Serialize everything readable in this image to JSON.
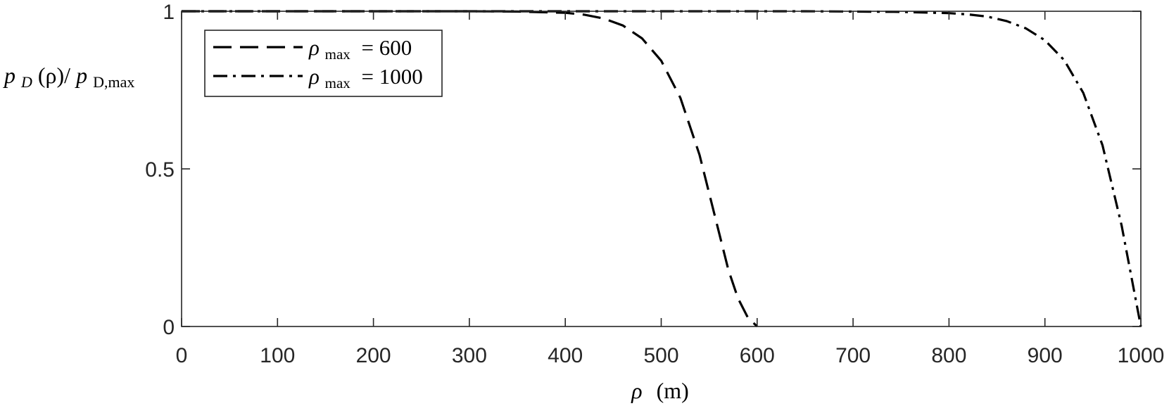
{
  "chart_data": {
    "type": "line",
    "xlabel": {
      "symbol": "ρ",
      "unit": "(m)"
    },
    "ylabel": {
      "p1": "p",
      "sub1": "D",
      "mid": "(ρ)/",
      "p2": "p",
      "sub2": "D,max"
    },
    "xlim": [
      0,
      1000
    ],
    "ylim": [
      0,
      1
    ],
    "x_ticks": [
      0,
      100,
      200,
      300,
      400,
      500,
      600,
      700,
      800,
      900,
      1000
    ],
    "x_tick_labels": [
      "0",
      "100",
      "200",
      "300",
      "400",
      "500",
      "600",
      "700",
      "800",
      "900",
      "1000"
    ],
    "y_ticks": [
      0,
      0.5,
      1
    ],
    "y_tick_labels": [
      "0",
      "0.5",
      "1"
    ],
    "grid": false,
    "legend_position": "top-left",
    "series": [
      {
        "name": "ρ_max = 600",
        "legend": {
          "sym": "ρ",
          "sub": "max",
          "eq": "= 600"
        },
        "style": "dashed",
        "rho_max": 600,
        "x": [
          0,
          50,
          100,
          150,
          200,
          250,
          300,
          350,
          400,
          420,
          440,
          460,
          480,
          500,
          520,
          540,
          560,
          570,
          580,
          590,
          600
        ],
        "y": [
          1,
          1,
          1,
          1,
          1,
          1,
          1,
          0.999,
          0.995,
          0.989,
          0.977,
          0.955,
          0.914,
          0.843,
          0.725,
          0.544,
          0.301,
          0.18,
          0.09,
          0.03,
          0
        ]
      },
      {
        "name": "ρ_max = 1000",
        "legend": {
          "sym": "ρ",
          "sub": "max",
          "eq": "= 1000"
        },
        "style": "dashdot",
        "rho_max": 1000,
        "x": [
          0,
          100,
          200,
          300,
          400,
          500,
          600,
          650,
          700,
          750,
          800,
          820,
          840,
          860,
          880,
          900,
          920,
          940,
          960,
          980,
          1000
        ],
        "y": [
          1,
          1,
          1,
          1,
          1,
          1,
          1,
          1,
          0.999,
          0.998,
          0.994,
          0.99,
          0.983,
          0.969,
          0.946,
          0.908,
          0.845,
          0.741,
          0.575,
          0.32,
          0
        ]
      }
    ]
  }
}
